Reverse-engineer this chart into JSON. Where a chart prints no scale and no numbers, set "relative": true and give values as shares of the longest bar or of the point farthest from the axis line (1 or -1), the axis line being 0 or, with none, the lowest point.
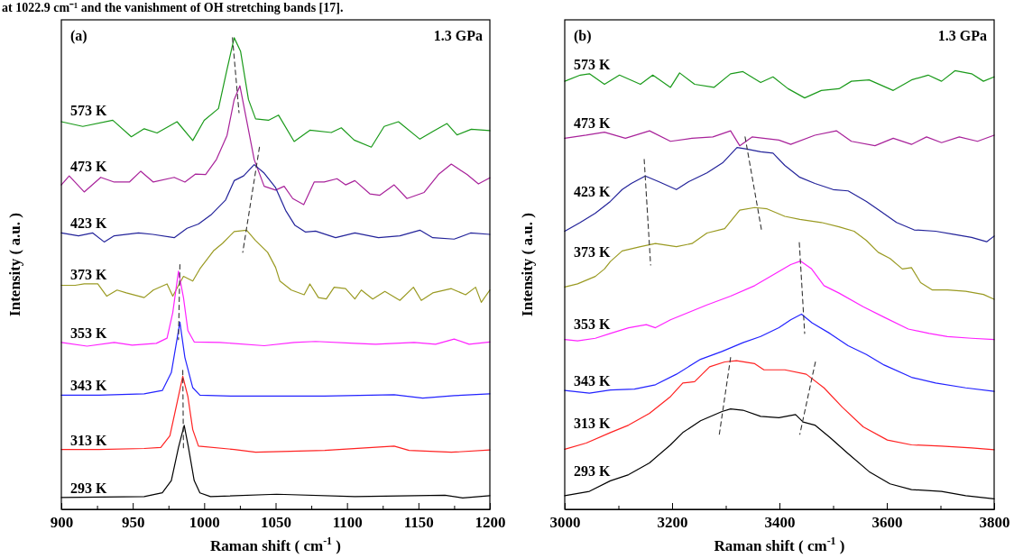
{
  "chart_data": [
    {
      "type": "line",
      "relative": true,
      "xlabel": "Raman shift ( cm$^{-1}$ )",
      "ylabel": "Intensity ( a.u. )",
      "annotations": [
        "(a)",
        "1.3 GPa",
        "at 1022.9 cm⁻¹ and the vanishment of OH stretching bands [17]."
      ],
      "xlim": [
        900,
        1200
      ],
      "xticks": [
        900,
        {
          "value": 925,
          "label": null
        },
        950,
        {
          "value": 975,
          "label": null
        },
        1000,
        {
          "value": 1025,
          "label": null
        },
        1050,
        {
          "value": 1075,
          "label": null
        },
        1100,
        {
          "value": 1125,
          "label": null
        },
        1150,
        {
          "value": 1175,
          "label": null
        },
        1200
      ],
      "series": [
        {
          "name": "573 K",
          "color": "#1a9a1a",
          "x": [
            900,
            915,
            936,
            949,
            958,
            967,
            981,
            992,
            1000,
            1010,
            1016,
            1021,
            1025.5,
            1031,
            1036,
            1045,
            1052,
            1063,
            1074,
            1089,
            1096,
            1105,
            1117,
            1126,
            1136,
            1151,
            1161,
            1170,
            1177,
            1187,
            1200
          ],
          "values": [
            0.822,
            0.812,
            0.825,
            0.79,
            0.807,
            0.798,
            0.822,
            0.782,
            0.825,
            0.85,
            0.933,
            1.0,
            0.971,
            0.869,
            0.828,
            0.825,
            0.836,
            0.78,
            0.804,
            0.799,
            0.809,
            0.783,
            0.768,
            0.812,
            0.822,
            0.785,
            0.803,
            0.818,
            0.794,
            0.806,
            0.803
          ]
        },
        {
          "name": "473 K",
          "color": "#a8229a",
          "x": [
            900,
            905.5,
            916,
            927.6,
            937,
            947.6,
            955.6,
            964.4,
            979,
            986.5,
            994,
            1001,
            1008.6,
            1016,
            1021,
            1025,
            1029.7,
            1035,
            1042,
            1050,
            1056,
            1062,
            1069.7,
            1077,
            1084,
            1093,
            1099,
            1105.5,
            1116,
            1123,
            1133,
            1142,
            1154,
            1164,
            1173,
            1184,
            1192,
            1200
          ],
          "values": [
            0.688,
            0.707,
            0.673,
            0.704,
            0.694,
            0.694,
            0.717,
            0.694,
            0.704,
            0.694,
            0.711,
            0.71,
            0.742,
            0.793,
            0.869,
            0.898,
            0.825,
            0.742,
            0.685,
            0.677,
            0.685,
            0.659,
            0.646,
            0.694,
            0.694,
            0.701,
            0.688,
            0.697,
            0.669,
            0.666,
            0.688,
            0.659,
            0.672,
            0.71,
            0.732,
            0.71,
            0.69,
            0.703
          ]
        },
        {
          "name": "423 K",
          "color": "#23239a",
          "x": [
            900,
            912,
            922,
            930,
            937,
            954,
            964,
            979,
            988,
            996,
            1004.6,
            1015,
            1021,
            1027.6,
            1035,
            1042,
            1050,
            1057,
            1063.6,
            1071,
            1078,
            1092,
            1105.5,
            1122,
            1137,
            1151,
            1160,
            1175,
            1186.5,
            1200
          ],
          "values": [
            0.586,
            0.58,
            0.586,
            0.567,
            0.58,
            0.586,
            0.583,
            0.576,
            0.596,
            0.605,
            0.624,
            0.656,
            0.697,
            0.707,
            0.731,
            0.713,
            0.682,
            0.634,
            0.602,
            0.588,
            0.59,
            0.576,
            0.586,
            0.576,
            0.58,
            0.592,
            0.576,
            0.573,
            0.586,
            0.583
          ]
        },
        {
          "name": "373 K",
          "color": "#9a9a22",
          "x": [
            900,
            909.7,
            916,
            925.5,
            931.8,
            939,
            945.5,
            958,
            964.4,
            974,
            978,
            985.5,
            992,
            997,
            1006.5,
            1012.8,
            1021,
            1029.7,
            1036,
            1044.4,
            1050,
            1053,
            1061,
            1070,
            1074,
            1080,
            1085.5,
            1091,
            1099,
            1105.5,
            1110,
            1118,
            1126.5,
            1137,
            1146.5,
            1152,
            1160,
            1173,
            1183,
            1190,
            1194,
            1200
          ],
          "values": [
            0.475,
            0.475,
            0.478,
            0.478,
            0.452,
            0.465,
            0.459,
            0.449,
            0.465,
            0.478,
            0.452,
            0.494,
            0.484,
            0.51,
            0.548,
            0.564,
            0.589,
            0.592,
            0.57,
            0.545,
            0.513,
            0.484,
            0.465,
            0.455,
            0.478,
            0.449,
            0.446,
            0.471,
            0.468,
            0.446,
            0.465,
            0.446,
            0.462,
            0.443,
            0.471,
            0.443,
            0.459,
            0.468,
            0.455,
            0.471,
            0.439,
            0.465
          ]
        },
        {
          "name": "353 K",
          "color": "#ff22ff",
          "x": [
            900,
            918,
            937,
            949.6,
            966.5,
            974,
            978,
            982,
            985.5,
            988.6,
            993,
            1011,
            1042,
            1063,
            1078,
            1105.5,
            1120,
            1147,
            1162,
            1175,
            1185.5,
            1200
          ],
          "values": [
            0.354,
            0.346,
            0.354,
            0.348,
            0.352,
            0.363,
            0.417,
            0.505,
            0.449,
            0.379,
            0.355,
            0.354,
            0.347,
            0.354,
            0.356,
            0.352,
            0.35,
            0.354,
            0.35,
            0.361,
            0.35,
            0.355
          ]
        },
        {
          "name": "343 K",
          "color": "#2222ff",
          "x": [
            900,
            926.5,
            958,
            970.7,
            977,
            983,
            986.5,
            992,
            997,
            1021,
            1042,
            1084,
            1133,
            1153,
            1175,
            1200
          ],
          "values": [
            0.242,
            0.242,
            0.245,
            0.252,
            0.29,
            0.397,
            0.322,
            0.258,
            0.242,
            0.24,
            0.24,
            0.24,
            0.243,
            0.236,
            0.241,
            0.245
          ]
        },
        {
          "name": "313 K",
          "color": "#ff2222",
          "x": [
            900,
            926.5,
            958,
            969.6,
            976,
            981,
            985,
            988.6,
            992,
            996,
            1021,
            1036,
            1084.4,
            1133,
            1143.4,
            1173,
            1200
          ],
          "values": [
            0.127,
            0.127,
            0.129,
            0.131,
            0.156,
            0.226,
            0.282,
            0.239,
            0.169,
            0.134,
            0.127,
            0.121,
            0.125,
            0.134,
            0.125,
            0.121,
            0.126
          ]
        },
        {
          "name": "293 K",
          "color": "#000000",
          "x": [
            900,
            958,
            970.7,
            977,
            982,
            986,
            989,
            993,
            997,
            1004.4,
            1050.7,
            1105.5,
            1168.6,
            1181,
            1200
          ],
          "values": [
            0.025,
            0.027,
            0.035,
            0.061,
            0.131,
            0.178,
            0.131,
            0.061,
            0.035,
            0.027,
            0.032,
            0.027,
            0.03,
            0.024,
            0.029
          ]
        },
        {
          "type": "line",
          "color": "#333333",
          "line_style": "dashed",
          "x": [
            1019.8,
            1024.4
          ],
          "values": [
            1.0,
            0.841
          ]
        },
        {
          "type": "line",
          "color": "#333333",
          "line_style": "dashed",
          "x": [
            1038.7,
            1027
          ],
          "values": [
            0.768,
            0.545
          ]
        },
        {
          "type": "line",
          "color": "#333333",
          "line_style": "dashed",
          "x": [
            983,
            982
          ],
          "values": [
            0.519,
            0.36
          ]
        },
        {
          "type": "line",
          "color": "#333333",
          "line_style": "dashed",
          "x": [
            985,
            985.5
          ],
          "values": [
            0.295,
            0.127
          ]
        }
      ]
    },
    {
      "type": "line",
      "relative": true,
      "xlabel": "Raman shift ( cm$^{-1}$ )",
      "ylabel": "Intensity ( a.u. )",
      "annotations": [
        "(b)",
        "1.3 GPa"
      ],
      "xlim": [
        3000,
        3800
      ],
      "xticks": [
        3000,
        {
          "value": 3100,
          "label": null
        },
        3200,
        {
          "value": 3300,
          "label": null
        },
        3400,
        {
          "value": 3500,
          "label": null
        },
        3600,
        {
          "value": 3700,
          "label": null
        },
        3800
      ],
      "series": [
        {
          "name": "573 K",
          "color": "#1a9a1a",
          "x": [
            3000,
            3029,
            3046,
            3074,
            3102,
            3141,
            3164,
            3197,
            3214,
            3242,
            3278,
            3309,
            3332,
            3365,
            3388,
            3416,
            3447,
            3478,
            3511,
            3534,
            3567,
            3612,
            3646,
            3677,
            3702,
            3727,
            3758,
            3780,
            3800
          ],
          "values": [
            0.976,
            0.99,
            0.993,
            0.969,
            0.99,
            0.969,
            0.99,
            0.962,
            0.995,
            0.969,
            0.962,
            0.993,
            0.998,
            0.973,
            0.986,
            0.959,
            0.938,
            0.955,
            0.959,
            0.976,
            0.979,
            0.955,
            0.979,
            0.99,
            0.976,
            1.0,
            0.993,
            0.976,
            0.986
          ]
        },
        {
          "name": "473 K",
          "color": "#a8229a",
          "x": [
            3000,
            3040,
            3074,
            3113,
            3158,
            3197,
            3237,
            3276,
            3309,
            3326,
            3349,
            3399,
            3421,
            3466,
            3506,
            3534,
            3578,
            3612,
            3646,
            3674,
            3702,
            3735,
            3769,
            3800
          ],
          "values": [
            0.846,
            0.853,
            0.86,
            0.846,
            0.863,
            0.839,
            0.846,
            0.849,
            0.863,
            0.829,
            0.849,
            0.842,
            0.832,
            0.853,
            0.863,
            0.839,
            0.829,
            0.846,
            0.832,
            0.849,
            0.836,
            0.849,
            0.839,
            0.853
          ]
        },
        {
          "name": "423 K",
          "color": "#23239a",
          "x": [
            3000,
            3029,
            3057,
            3085,
            3107,
            3124,
            3150,
            3175,
            3208,
            3231,
            3265,
            3295,
            3321,
            3337,
            3365,
            3388,
            3410,
            3438,
            3466,
            3500,
            3528,
            3562,
            3590,
            3618,
            3651,
            3691,
            3724,
            3758,
            3786,
            3800
          ],
          "values": [
            0.634,
            0.654,
            0.675,
            0.702,
            0.729,
            0.743,
            0.76,
            0.747,
            0.729,
            0.747,
            0.767,
            0.791,
            0.825,
            0.822,
            0.815,
            0.812,
            0.784,
            0.757,
            0.743,
            0.729,
            0.726,
            0.702,
            0.678,
            0.654,
            0.637,
            0.634,
            0.627,
            0.62,
            0.61,
            0.623
          ]
        },
        {
          "name": "373 K",
          "color": "#9a9a22",
          "x": [
            3000,
            3024,
            3057,
            3074,
            3085,
            3107,
            3141,
            3169,
            3208,
            3237,
            3265,
            3298,
            3326,
            3354,
            3377,
            3410,
            3438,
            3478,
            3511,
            3539,
            3562,
            3584,
            3606,
            3629,
            3646,
            3663,
            3685,
            3713,
            3747,
            3780,
            3800
          ],
          "values": [
            0.507,
            0.514,
            0.531,
            0.548,
            0.565,
            0.589,
            0.599,
            0.606,
            0.599,
            0.606,
            0.63,
            0.64,
            0.682,
            0.688,
            0.685,
            0.668,
            0.661,
            0.654,
            0.644,
            0.634,
            0.613,
            0.586,
            0.572,
            0.548,
            0.551,
            0.517,
            0.5,
            0.5,
            0.497,
            0.49,
            0.479
          ]
        },
        {
          "name": "353 K",
          "color": "#ff22ff",
          "x": [
            3000,
            3024,
            3057,
            3085,
            3119,
            3152,
            3169,
            3197,
            3231,
            3265,
            3309,
            3354,
            3393,
            3421,
            3439,
            3460,
            3483,
            3511,
            3556,
            3595,
            3640,
            3679,
            3713,
            3758,
            3800
          ],
          "values": [
            0.387,
            0.384,
            0.39,
            0.401,
            0.414,
            0.421,
            0.414,
            0.432,
            0.449,
            0.466,
            0.486,
            0.51,
            0.538,
            0.558,
            0.566,
            0.548,
            0.51,
            0.493,
            0.462,
            0.438,
            0.411,
            0.401,
            0.394,
            0.39,
            0.387
          ]
        },
        {
          "name": "343 K",
          "color": "#2222ff",
          "x": [
            3000,
            3046,
            3085,
            3130,
            3169,
            3208,
            3253,
            3293,
            3332,
            3365,
            3399,
            3421,
            3441,
            3461,
            3494,
            3528,
            3562,
            3595,
            3646,
            3691,
            3747,
            3800
          ],
          "values": [
            0.271,
            0.265,
            0.272,
            0.274,
            0.284,
            0.308,
            0.342,
            0.36,
            0.38,
            0.394,
            0.414,
            0.432,
            0.445,
            0.425,
            0.401,
            0.373,
            0.353,
            0.329,
            0.301,
            0.288,
            0.277,
            0.269
          ]
        },
        {
          "name": "313 K",
          "color": "#ff2222",
          "x": [
            3000,
            3040,
            3085,
            3119,
            3158,
            3197,
            3220,
            3242,
            3270,
            3298,
            3320,
            3354,
            3371,
            3410,
            3450,
            3483,
            3517,
            3556,
            3601,
            3646,
            3702,
            3758,
            3800
          ],
          "values": [
            0.137,
            0.151,
            0.175,
            0.192,
            0.219,
            0.257,
            0.288,
            0.291,
            0.325,
            0.336,
            0.339,
            0.332,
            0.318,
            0.318,
            0.308,
            0.277,
            0.233,
            0.188,
            0.158,
            0.147,
            0.144,
            0.14,
            0.136
          ]
        },
        {
          "name": "293 K",
          "color": "#000000",
          "x": [
            3000,
            3046,
            3085,
            3119,
            3158,
            3197,
            3220,
            3253,
            3293,
            3309,
            3332,
            3365,
            3399,
            3430,
            3444,
            3466,
            3494,
            3528,
            3567,
            3606,
            3646,
            3702,
            3747,
            3800
          ],
          "values": [
            0.031,
            0.041,
            0.065,
            0.079,
            0.106,
            0.147,
            0.175,
            0.202,
            0.223,
            0.229,
            0.226,
            0.212,
            0.209,
            0.216,
            0.199,
            0.192,
            0.164,
            0.127,
            0.086,
            0.058,
            0.045,
            0.041,
            0.031,
            0.024
          ]
        },
        {
          "type": "line",
          "color": "#333333",
          "line_style": "dashed",
          "x": [
            3148,
            3160
          ],
          "values": [
            0.798,
            0.557
          ]
        },
        {
          "type": "line",
          "color": "#333333",
          "line_style": "dashed",
          "x": [
            3336,
            3367
          ],
          "values": [
            0.849,
            0.634
          ]
        },
        {
          "type": "line",
          "color": "#333333",
          "line_style": "dashed",
          "x": [
            3437,
            3447
          ],
          "values": [
            0.608,
            0.401
          ]
        },
        {
          "type": "line",
          "color": "#333333",
          "line_style": "dashed",
          "x": [
            3309,
            3288
          ],
          "values": [
            0.346,
            0.171
          ]
        },
        {
          "type": "line",
          "color": "#333333",
          "line_style": "dashed",
          "x": [
            3467,
            3438
          ],
          "values": [
            0.336,
            0.171
          ]
        }
      ]
    }
  ]
}
